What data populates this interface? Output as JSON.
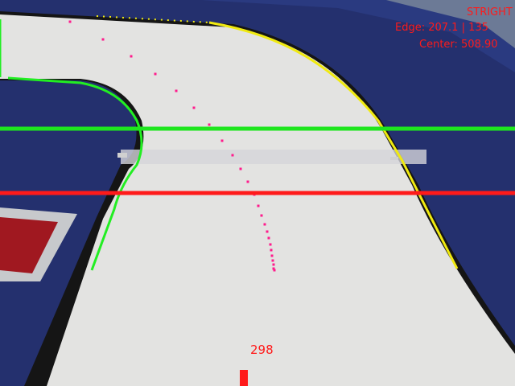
{
  "hud": {
    "mode": "STRIGHT",
    "edge": "Edge: 207.1 | 135",
    "center": "Center: 508.90"
  },
  "steering": {
    "value": "298"
  },
  "colors": {
    "mat_blue": "#24306e",
    "track_white": "#e3e3e1",
    "left_edge": "#22ee22",
    "right_edge": "#f0ea10",
    "path_points": "#ff1a8c",
    "upper_scanline": "#1ee61e",
    "lower_scanline": "#ff1a1a",
    "hud_text": "#ff1a1a"
  },
  "icons": {
    "left_edge": "left-edge-line",
    "right_edge": "right-edge-line",
    "path": "center-path-points"
  }
}
